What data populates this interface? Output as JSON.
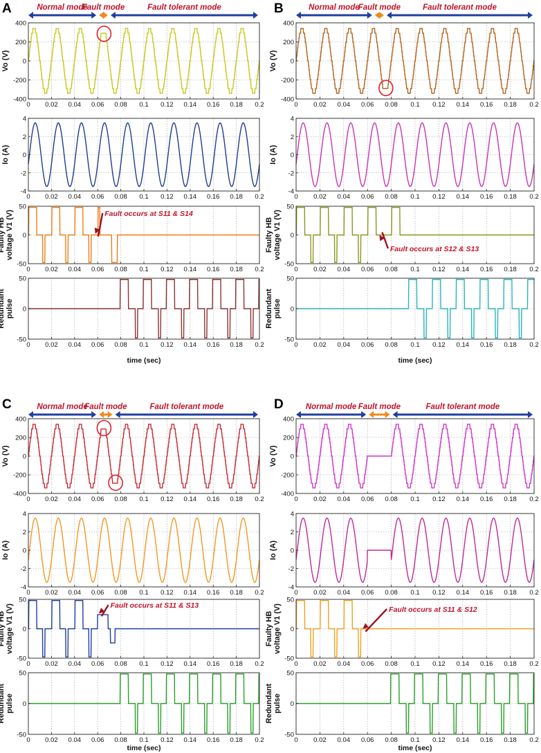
{
  "figure": {
    "time_label": "time (sec)",
    "modes": {
      "normal": "Normal mode",
      "fault": "Fault mode",
      "tolerant": "Fault tolerant mode"
    },
    "ylabels": {
      "vo": "Vo (V)",
      "io": "Io (A)",
      "vhb_line1": "Faulty HB",
      "vhb_line2": "voltage V1 (V)",
      "red_line1": "Redundant",
      "red_line2": "pulse"
    },
    "colors": {
      "mode_normal": "#1f3fa0",
      "mode_fault": "#f08a1e",
      "mode_label": "#c0142a",
      "fault_circle": "#e0202a",
      "annotation": "#c0142a"
    }
  },
  "chart_data": [
    {
      "panel": "A",
      "fault_text": "Fault occurs at S11 & S14",
      "modes": [
        {
          "name": "Normal mode",
          "t_start": 0,
          "t_end": 0.06
        },
        {
          "name": "Fault mode",
          "t_start": 0.06,
          "t_end": 0.07
        },
        {
          "name": "Fault tolerant mode",
          "t_start": 0.07,
          "t_end": 0.2
        }
      ],
      "subplots": [
        {
          "type": "line",
          "ylabel": "Vo (V)",
          "color": "#c8c81a",
          "xlim": [
            0,
            0.2
          ],
          "ylim": [
            -400,
            400
          ],
          "yticks": [
            -400,
            -200,
            0,
            200,
            400
          ],
          "xticks": [
            0,
            0.02,
            0.04,
            0.06,
            0.08,
            0.1,
            0.12,
            0.14,
            0.16,
            0.18,
            0.2
          ],
          "signal": "staircase sine 50 Hz, peak 340 V; positive peak reduced to ~290 V at t≈0.065 s"
        },
        {
          "type": "line",
          "ylabel": "Io (A)",
          "color": "#1e3c8c",
          "xlim": [
            0,
            0.2
          ],
          "ylim": [
            -4,
            4
          ],
          "yticks": [
            -4,
            -2,
            0,
            2,
            4
          ],
          "xticks": [
            0,
            0.02,
            0.04,
            0.06,
            0.08,
            0.1,
            0.12,
            0.14,
            0.16,
            0.18,
            0.2
          ],
          "signal": "sine 50 Hz, peak 3.5 A"
        },
        {
          "type": "line",
          "ylabel": "Faulty HB voltage V1 (V)",
          "color": "#f07d14",
          "xlim": [
            0,
            0.2
          ],
          "ylim": [
            -50,
            50
          ],
          "yticks": [
            -50,
            0,
            50
          ],
          "xticks": [
            0,
            0.02,
            0.04,
            0.06,
            0.08,
            0.1,
            0.12,
            0.14,
            0.16,
            0.18,
            0.2
          ],
          "signal": "+48 V / -48 V pulses until fault; -48 V pulse at 0.075 s then 0 V"
        },
        {
          "type": "line",
          "ylabel": "Redundant pulse",
          "color": "#8c3232",
          "xlim": [
            0,
            0.2
          ],
          "ylim": [
            -50,
            50
          ],
          "yticks": [
            -50,
            0,
            50
          ],
          "xticks": [
            0,
            0.02,
            0.04,
            0.06,
            0.08,
            0.1,
            0.12,
            0.14,
            0.16,
            0.18,
            0.2
          ],
          "signal": "0 V until 0.08 s, then +48 V / -48 V pulses"
        }
      ]
    },
    {
      "panel": "B",
      "fault_text": "Fault occurs at S12 & S13",
      "modes": [
        {
          "name": "Normal mode",
          "t_start": 0,
          "t_end": 0.065
        },
        {
          "name": "Fault mode",
          "t_start": 0.065,
          "t_end": 0.075
        },
        {
          "name": "Fault tolerant mode",
          "t_start": 0.075,
          "t_end": 0.2
        }
      ],
      "subplots": [
        {
          "type": "line",
          "ylabel": "Vo (V)",
          "color": "#b4641e",
          "xlim": [
            0,
            0.2
          ],
          "ylim": [
            -400,
            400
          ],
          "yticks": [
            -400,
            -200,
            0,
            200,
            400
          ],
          "xticks": [
            0,
            0.02,
            0.04,
            0.06,
            0.08,
            0.1,
            0.12,
            0.14,
            0.16,
            0.18,
            0.2
          ],
          "signal": "staircase sine 50 Hz, peak 340 V; negative peak reduced to ~-290 V at t≈0.075 s"
        },
        {
          "type": "line",
          "ylabel": "Io (A)",
          "color": "#c832b4",
          "xlim": [
            0,
            0.2
          ],
          "ylim": [
            -4,
            4
          ],
          "yticks": [
            -4,
            -2,
            0,
            2,
            4
          ],
          "xticks": [
            0,
            0.02,
            0.04,
            0.06,
            0.08,
            0.1,
            0.12,
            0.14,
            0.16,
            0.18,
            0.2
          ],
          "signal": "sine 50 Hz, peak 3.5 A"
        },
        {
          "type": "line",
          "ylabel": "Faulty HB voltage V1 (V)",
          "color": "#8c961e",
          "xlim": [
            0,
            0.2
          ],
          "ylim": [
            -50,
            50
          ],
          "yticks": [
            -50,
            0,
            50
          ],
          "xticks": [
            0,
            0.02,
            0.04,
            0.06,
            0.08,
            0.1,
            0.12,
            0.14,
            0.16,
            0.18,
            0.2
          ],
          "signal": "+48 V pulses continue to 0.085 s, no -48 V after fault, then 0 V"
        },
        {
          "type": "line",
          "ylabel": "Redundant pulse",
          "color": "#28b4be",
          "xlim": [
            0,
            0.2
          ],
          "ylim": [
            -50,
            50
          ],
          "yticks": [
            -50,
            0,
            50
          ],
          "xticks": [
            0,
            0.02,
            0.04,
            0.06,
            0.08,
            0.1,
            0.12,
            0.14,
            0.16,
            0.18,
            0.2
          ],
          "signal": "0 V until 0.09 s, then +48 V / -48 V pulses"
        }
      ]
    },
    {
      "panel": "C",
      "fault_text": "Fault occurs at S11 & S13",
      "modes": [
        {
          "name": "Normal mode",
          "t_start": 0,
          "t_end": 0.06
        },
        {
          "name": "Fault mode",
          "t_start": 0.06,
          "t_end": 0.074
        },
        {
          "name": "Fault tolerant mode",
          "t_start": 0.074,
          "t_end": 0.2
        }
      ],
      "subplots": [
        {
          "type": "line",
          "ylabel": "Vo (V)",
          "color": "#c82832",
          "xlim": [
            0,
            0.2
          ],
          "ylim": [
            -400,
            400
          ],
          "yticks": [
            -400,
            -200,
            0,
            200,
            400
          ],
          "xticks": [
            0,
            0.02,
            0.04,
            0.06,
            0.08,
            0.1,
            0.12,
            0.14,
            0.16,
            0.18,
            0.2
          ],
          "signal": "staircase sine 50 Hz, peak 340 V; peaks reduced at t≈0.065 s and t≈0.075 s"
        },
        {
          "type": "line",
          "ylabel": "Io (A)",
          "color": "#f5961e",
          "xlim": [
            0,
            0.2
          ],
          "ylim": [
            -4,
            4
          ],
          "yticks": [
            -4,
            -2,
            0,
            2,
            4
          ],
          "xticks": [
            0,
            0.02,
            0.04,
            0.06,
            0.08,
            0.1,
            0.12,
            0.14,
            0.16,
            0.18,
            0.2
          ],
          "signal": "sine 50 Hz, peak 3.5 A"
        },
        {
          "type": "line",
          "ylabel": "Faulty HB voltage V1 (V)",
          "color": "#1e3ca0",
          "xlim": [
            0,
            0.2
          ],
          "ylim": [
            -50,
            50
          ],
          "yticks": [
            -50,
            0,
            50
          ],
          "xticks": [
            0,
            0.02,
            0.04,
            0.06,
            0.08,
            0.1,
            0.12,
            0.14,
            0.16,
            0.18,
            0.2
          ],
          "signal": "+48 V / -48 V pulses; ~+24 V step at 0.065 s, -24 V at 0.075 s, then 0 V"
        },
        {
          "type": "line",
          "ylabel": "Redundant pulse",
          "color": "#28a028",
          "xlim": [
            0,
            0.2
          ],
          "ylim": [
            -50,
            50
          ],
          "yticks": [
            -50,
            0,
            50
          ],
          "xticks": [
            0,
            0.02,
            0.04,
            0.06,
            0.08,
            0.1,
            0.12,
            0.14,
            0.16,
            0.18,
            0.2
          ],
          "signal": "0 V until 0.08 s, then +48 V / -48 V pulses"
        }
      ]
    },
    {
      "panel": "D",
      "fault_text": "Fault occurs at S11 & S12",
      "modes": [
        {
          "name": "Normal mode",
          "t_start": 0,
          "t_end": 0.06
        },
        {
          "name": "Fault mode",
          "t_start": 0.06,
          "t_end": 0.08
        },
        {
          "name": "Fault tolerant mode",
          "t_start": 0.08,
          "t_end": 0.2
        }
      ],
      "subplots": [
        {
          "type": "line",
          "ylabel": "Vo (V)",
          "color": "#d232c8",
          "xlim": [
            0,
            0.2
          ],
          "ylim": [
            -400,
            400
          ],
          "yticks": [
            -400,
            -200,
            0,
            200,
            400
          ],
          "xticks": [
            0,
            0.02,
            0.04,
            0.06,
            0.08,
            0.1,
            0.12,
            0.14,
            0.16,
            0.18,
            0.2
          ],
          "signal": "staircase sine 50 Hz, peak 340 V; 0 V between 0.06 s and 0.08 s"
        },
        {
          "type": "line",
          "ylabel": "Io (A)",
          "color": "#be2896",
          "xlim": [
            0,
            0.2
          ],
          "ylim": [
            -4,
            4
          ],
          "yticks": [
            -4,
            -2,
            0,
            2,
            4
          ],
          "xticks": [
            0,
            0.02,
            0.04,
            0.06,
            0.08,
            0.1,
            0.12,
            0.14,
            0.16,
            0.18,
            0.2
          ],
          "signal": "sine 50 Hz, peak 3.5 A; 0 A between 0.06 s and 0.08 s"
        },
        {
          "type": "line",
          "ylabel": "Faulty HB voltage V1 (V)",
          "color": "#f0a01e",
          "xlim": [
            0,
            0.2
          ],
          "ylim": [
            -50,
            50
          ],
          "yticks": [
            -50,
            0,
            50
          ],
          "xticks": [
            0,
            0.02,
            0.04,
            0.06,
            0.08,
            0.1,
            0.12,
            0.14,
            0.16,
            0.18,
            0.2
          ],
          "signal": "+48 V / -48 V pulses until 0.06 s, then 0 V"
        },
        {
          "type": "line",
          "ylabel": "Redundant pulse",
          "color": "#28a028",
          "xlim": [
            0,
            0.2
          ],
          "ylim": [
            -50,
            50
          ],
          "yticks": [
            -50,
            0,
            50
          ],
          "xticks": [
            0,
            0.02,
            0.04,
            0.06,
            0.08,
            0.1,
            0.12,
            0.14,
            0.16,
            0.18,
            0.2
          ],
          "signal": "0 V until 0.08 s, then +48 V / -48 V pulses"
        }
      ]
    }
  ]
}
